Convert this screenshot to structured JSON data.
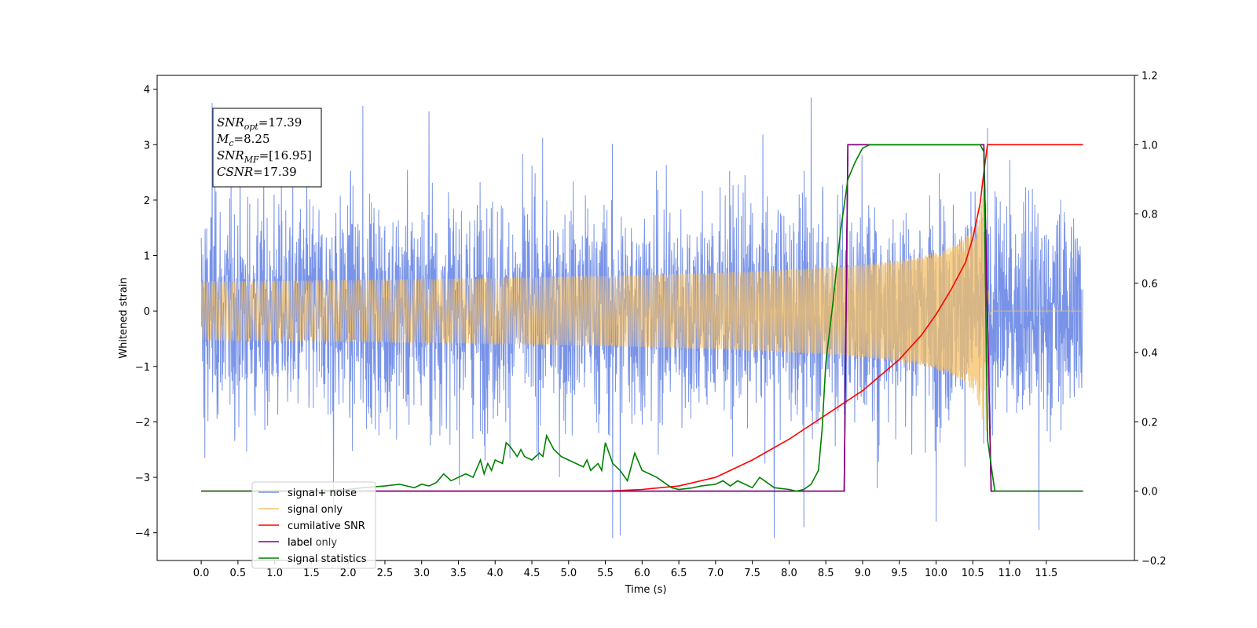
{
  "chart_data": {
    "type": "line",
    "xlabel": "Time (s)",
    "ylabel": "Whitened strain",
    "xlim": [
      -0.6,
      12.7
    ],
    "ylim_left": [
      -4.5,
      4.25
    ],
    "ylim_right": [
      -0.2,
      1.2
    ],
    "x_ticks": [
      "0.0",
      "0.5",
      "1.0",
      "1.5",
      "2.0",
      "2.5",
      "3.0",
      "3.5",
      "4.0",
      "4.5",
      "5.0",
      "5.5",
      "6.0",
      "6.5",
      "7.0",
      "7.5",
      "8.0",
      "8.5",
      "9.0",
      "9.5",
      "10.0",
      "10.5",
      "11.0",
      "11.5"
    ],
    "y_ticks_left": [
      "−4",
      "−3",
      "−2",
      "−1",
      "0",
      "1",
      "2",
      "3",
      "4"
    ],
    "y_ticks_right": [
      "−0.2",
      "0.0",
      "0.2",
      "0.4",
      "0.6",
      "0.8",
      "1.0",
      "1.2"
    ],
    "grid": false,
    "legend_position": "lower-left",
    "annotation": {
      "lines": [
        {
          "main": "SNR",
          "sub": "opt",
          "rest": "=17.39"
        },
        {
          "main": "M",
          "sub": "c",
          "rest": "=8.25"
        },
        {
          "main": "SNR",
          "sub": "MF",
          "rest": "=[16.95]"
        },
        {
          "main": "CSNR",
          "sub": "",
          "rest": "=17.39"
        }
      ]
    },
    "series": [
      {
        "name": "signal+ noise",
        "axis": "left",
        "color": "#7893e8",
        "kind": "noise",
        "x_range": [
          0.0,
          12.0
        ],
        "std": 1.0,
        "extremes": [
          [
            0.15,
            3.75
          ],
          [
            2.2,
            3.7
          ],
          [
            3.1,
            3.6
          ],
          [
            5.6,
            -4.1
          ],
          [
            5.7,
            -4.05
          ],
          [
            7.8,
            -4.1
          ],
          [
            8.2,
            -3.9
          ],
          [
            8.3,
            3.85
          ],
          [
            9.2,
            -3.2
          ],
          [
            10.0,
            -3.8
          ],
          [
            10.7,
            3.3
          ],
          [
            11.4,
            -3.95
          ],
          [
            1.8,
            -3.5
          ],
          [
            0.05,
            2.4
          ],
          [
            0.05,
            -2.65
          ]
        ]
      },
      {
        "name": "signal only",
        "axis": "left",
        "color": "#f5c066",
        "kind": "chirp",
        "x_range": [
          0.0,
          12.0
        ],
        "merger": 10.68,
        "peak_amplitude": 2.55
      },
      {
        "name": "cumilative SNR",
        "axis": "right",
        "color": "#ff0000",
        "x": [
          0,
          5.5,
          6.0,
          6.5,
          7.0,
          7.5,
          8.0,
          8.5,
          9.0,
          9.5,
          9.8,
          10.0,
          10.2,
          10.4,
          10.5,
          10.6,
          10.65,
          10.7,
          12.0
        ],
        "y": [
          0,
          0,
          0.005,
          0.015,
          0.04,
          0.09,
          0.15,
          0.22,
          0.29,
          0.38,
          0.45,
          0.51,
          0.58,
          0.66,
          0.73,
          0.83,
          0.92,
          1.0,
          1.0
        ]
      },
      {
        "name": "label only",
        "axis": "right",
        "color": "#800080",
        "x": [
          0,
          8.75,
          8.8,
          10.65,
          10.75,
          12.0
        ],
        "y": [
          0,
          0,
          1.0,
          1.0,
          0,
          0
        ]
      },
      {
        "name": "label",
        "axis": "right",
        "color": "#800080",
        "x": [
          0,
          8.75,
          8.8,
          10.65,
          10.75,
          12.0
        ],
        "y": [
          0,
          0,
          1.0,
          1.0,
          0,
          0
        ]
      },
      {
        "name": "signal statistics",
        "axis": "right",
        "color": "#008000",
        "x": [
          0,
          1.5,
          2.0,
          2.2,
          2.5,
          2.7,
          2.9,
          3.0,
          3.1,
          3.2,
          3.3,
          3.4,
          3.5,
          3.6,
          3.7,
          3.8,
          3.85,
          3.9,
          3.95,
          4.0,
          4.1,
          4.15,
          4.2,
          4.3,
          4.35,
          4.4,
          4.5,
          4.6,
          4.65,
          4.7,
          4.8,
          4.9,
          5.0,
          5.1,
          5.2,
          5.25,
          5.3,
          5.4,
          5.45,
          5.5,
          5.6,
          5.7,
          5.8,
          5.9,
          6.0,
          6.2,
          6.4,
          6.5,
          6.7,
          6.8,
          7.0,
          7.1,
          7.2,
          7.3,
          7.5,
          7.6,
          7.8,
          8.0,
          8.1,
          8.2,
          8.3,
          8.4,
          8.45,
          8.5,
          8.6,
          8.7,
          8.8,
          8.9,
          9.0,
          9.1,
          9.2,
          9.5,
          10.0,
          10.5,
          10.6,
          10.65,
          10.7,
          10.8,
          12.0
        ],
        "y": [
          0,
          0,
          0.005,
          0.01,
          0.015,
          0.02,
          0.01,
          0.02,
          0.015,
          0.025,
          0.05,
          0.03,
          0.04,
          0.05,
          0.04,
          0.09,
          0.05,
          0.08,
          0.06,
          0.09,
          0.08,
          0.14,
          0.13,
          0.1,
          0.12,
          0.1,
          0.09,
          0.11,
          0.1,
          0.16,
          0.12,
          0.1,
          0.09,
          0.08,
          0.07,
          0.09,
          0.06,
          0.08,
          0.06,
          0.14,
          0.08,
          0.06,
          0.03,
          0.11,
          0.06,
          0.04,
          0.01,
          0.005,
          0.01,
          0.015,
          0.02,
          0.03,
          0.015,
          0.03,
          0.01,
          0.04,
          0.01,
          0.005,
          0.0,
          0.005,
          0.02,
          0.06,
          0.18,
          0.37,
          0.55,
          0.75,
          0.9,
          0.95,
          0.99,
          1.0,
          1.0,
          1.0,
          1.0,
          1.0,
          1.0,
          0.98,
          0.15,
          0.0,
          0.0
        ]
      }
    ]
  }
}
